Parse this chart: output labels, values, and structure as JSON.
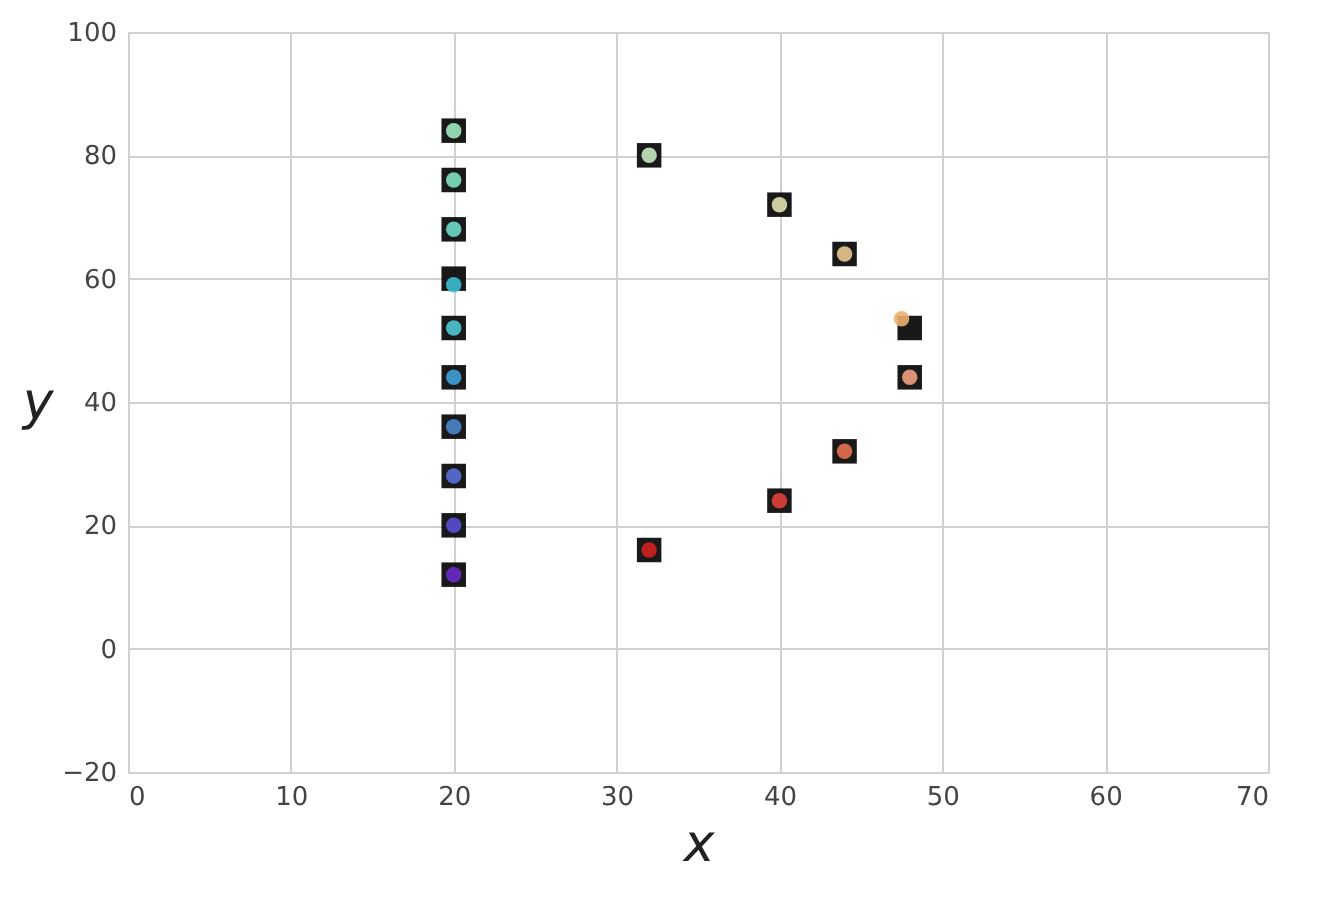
{
  "chart_data": {
    "type": "scatter",
    "xlabel": "x",
    "ylabel": "y",
    "xlim": [
      0,
      70
    ],
    "ylim": [
      -20,
      100
    ],
    "xticks": [
      0,
      10,
      20,
      30,
      40,
      50,
      60,
      70
    ],
    "yticks": [
      -20,
      0,
      20,
      40,
      60,
      80,
      100
    ],
    "grid": true,
    "series": [
      {
        "marker": "square",
        "color": "#000000",
        "x": [
          20,
          20,
          20,
          20,
          20,
          20,
          20,
          20,
          20,
          20,
          32,
          40,
          44,
          48,
          48,
          44,
          40,
          32
        ],
        "values": [
          12,
          20,
          28,
          36,
          44,
          52,
          60,
          68,
          76,
          84,
          80,
          72,
          64,
          52,
          44,
          32,
          24,
          16
        ]
      },
      {
        "marker": "circle",
        "x": [
          20,
          20,
          20,
          20,
          20,
          20,
          20,
          20,
          20,
          20,
          32,
          40,
          44,
          47.5,
          48,
          44,
          40,
          32
        ],
        "values": [
          12,
          20,
          28,
          36,
          44,
          52,
          59,
          68,
          76,
          84,
          80,
          72,
          64,
          53.5,
          44,
          32,
          24,
          16
        ],
        "colors": [
          "#6a2bc8",
          "#5a4fd0",
          "#5a6fd8",
          "#4a86cc",
          "#3fa0d8",
          "#4dc8d0",
          "#3cbcd0",
          "#6ed8c8",
          "#80e0c0",
          "#a0e8c0",
          "#c8e8c0",
          "#e0e0b0",
          "#e8c890",
          "#f0b070",
          "#f0a080",
          "#e87050",
          "#e04038",
          "#d02020"
        ]
      }
    ]
  }
}
